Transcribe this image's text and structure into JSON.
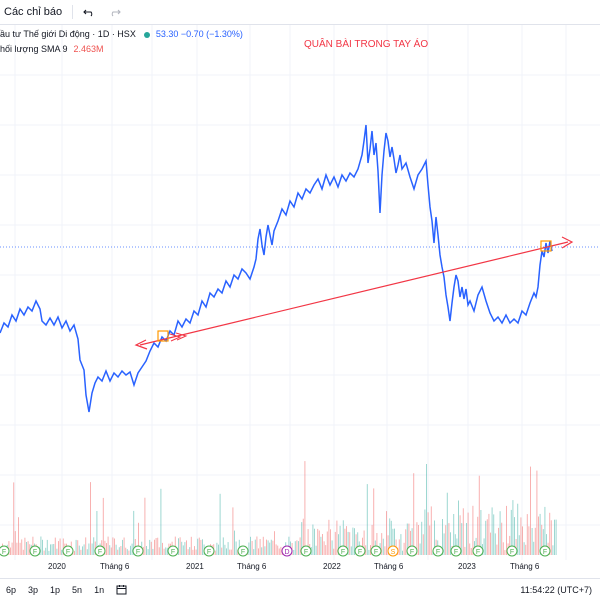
{
  "toolbar": {
    "indicators_label": "Các chỉ báo",
    "undo_icon": "undo-icon",
    "redo_icon": "redo-icon"
  },
  "legend": {
    "symbol_title": "ầu tư Thế giới Di động · 1D · HSX",
    "price_line": "53.30 −0.70 (−1.30%)",
    "volume_label": "hối lượng SMA 9",
    "volume_value": "2.463M"
  },
  "annotation": "QUÂN BÀI TRONG TAY ÁO",
  "time_axis": [
    "2020",
    "Tháng 6",
    "2021",
    "Tháng 6",
    "2022",
    "Tháng 6",
    "2023",
    "Tháng 6"
  ],
  "range_buttons": [
    "6p",
    "3p",
    "1p",
    "5n",
    "1n"
  ],
  "clock": "11:54:22 (UTC+7)",
  "event_markers": [
    "F",
    "F",
    "F",
    "F",
    "F",
    "F",
    "F",
    "F",
    "D",
    "F",
    "F",
    "F",
    "F",
    "S",
    "F",
    "F",
    "F",
    "F",
    "F",
    "F"
  ],
  "colors": {
    "price_line": "#2962ff",
    "trend_line": "#f23645",
    "volume_up": "#26a69a",
    "volume_down": "#ef5350",
    "marker": "#4caf50"
  }
}
